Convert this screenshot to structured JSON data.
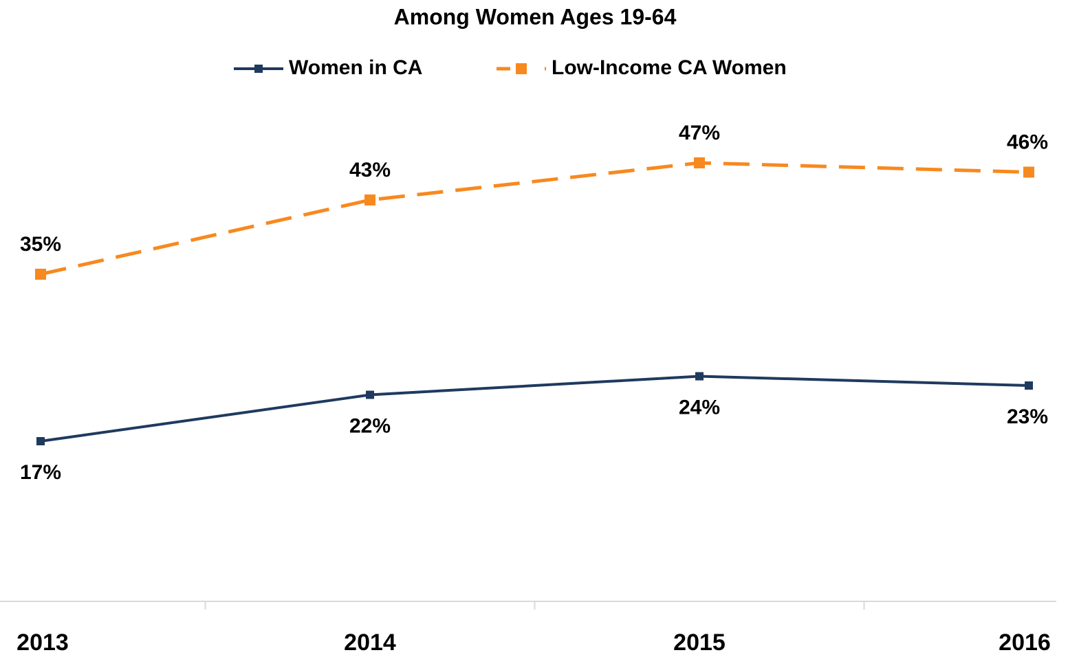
{
  "chart_data": {
    "type": "line",
    "title": "Among Women Ages 19-64",
    "categories": [
      "2013",
      "2014",
      "2015",
      "2016"
    ],
    "series": [
      {
        "name": "Women in CA",
        "color": "#1f3a5f",
        "values": [
          17,
          22,
          24,
          23
        ],
        "value_labels": [
          "17%",
          "22%",
          "24%",
          "23%"
        ]
      },
      {
        "name": "Low-Income CA Women",
        "color": "#f7891f",
        "dashed": true,
        "values": [
          35,
          43,
          47,
          46
        ],
        "value_labels": [
          "35%",
          "43%",
          "47%",
          "46%"
        ]
      }
    ],
    "ylim": [
      0,
      60
    ],
    "legend": "top"
  }
}
